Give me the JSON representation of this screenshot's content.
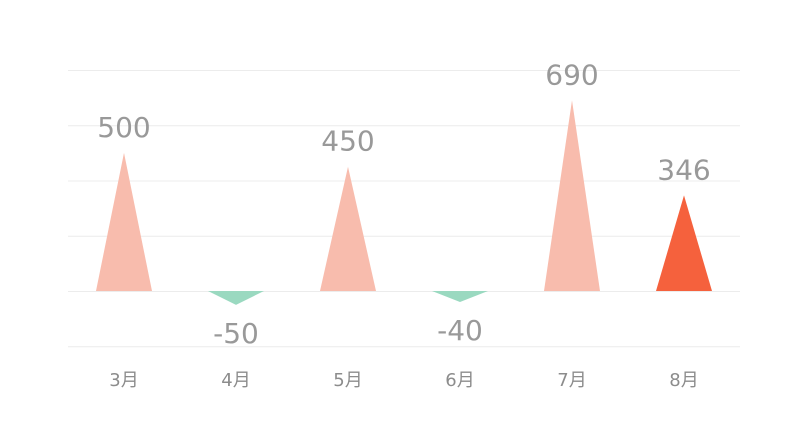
{
  "chart_data": {
    "type": "bar",
    "bar_shape": "triangle",
    "categories": [
      "3月",
      "4月",
      "5月",
      "6月",
      "7月",
      "8月"
    ],
    "values": [
      500,
      -50,
      450,
      -40,
      690,
      346
    ],
    "value_labels": [
      "500",
      "-50",
      "450",
      "-40",
      "690",
      "346"
    ],
    "title": "",
    "xlabel": "",
    "ylabel": "",
    "ylim": [
      -200,
      800
    ],
    "y_gridlines": [
      -200,
      0,
      200,
      400,
      600,
      800
    ],
    "grid": true,
    "legend": "none",
    "highlight_index": 5,
    "colors": {
      "positive": "#f8bcad",
      "negative": "#9ad9c0",
      "highlight": "#f5613d",
      "grid": "#ececec",
      "value_label": "#999999",
      "tick_label": "#8c8c8c"
    }
  }
}
